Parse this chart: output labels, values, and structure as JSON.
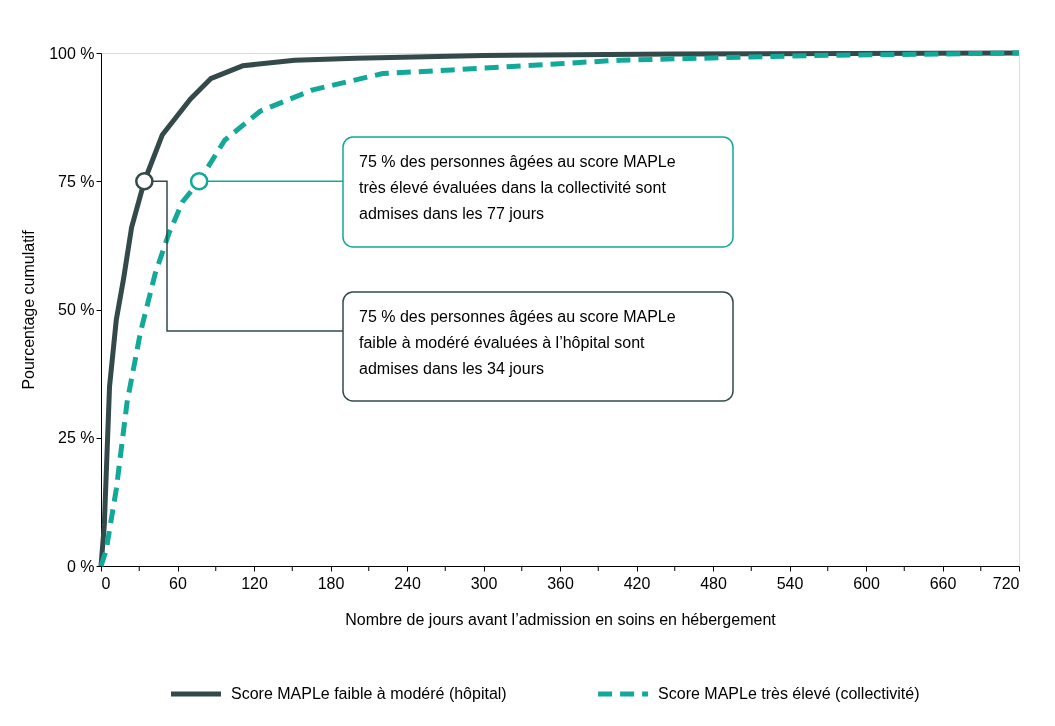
{
  "chart_data": {
    "type": "line",
    "xlabel": "Nombre de jours avant l’admission en soins en hébergement",
    "ylabel": "Pourcentage cumulatif",
    "xlim": [
      0,
      720
    ],
    "ylim": [
      0,
      100
    ],
    "xticks": [
      0,
      {
        "value": 30,
        "label": null
      },
      60,
      {
        "value": 90,
        "label": null
      },
      120,
      {
        "value": 150,
        "label": null
      },
      180,
      {
        "value": 210,
        "label": null
      },
      240,
      {
        "value": 270,
        "label": null
      },
      300,
      {
        "value": 330,
        "label": null
      },
      360,
      {
        "value": 390,
        "label": null
      },
      420,
      {
        "value": 450,
        "label": null
      },
      480,
      {
        "value": 510,
        "label": null
      },
      540,
      {
        "value": 570,
        "label": null
      },
      600,
      {
        "value": 630,
        "label": null
      },
      660,
      {
        "value": 690,
        "label": null
      },
      720
    ],
    "yticks": [
      {
        "value": 0,
        "label": "0 %"
      },
      {
        "value": 25,
        "label": "25 %"
      },
      {
        "value": 50,
        "label": "50 %"
      },
      {
        "value": 75,
        "label": "75 %"
      },
      {
        "value": 100,
        "label": "100 %"
      }
    ],
    "grid": false,
    "legend": "bottom",
    "marker": "none",
    "series": [
      {
        "name": "Score MAPLe faible à modéré (hôpital)",
        "color": "#33494a",
        "line_style": "solid",
        "x": [
          0,
          2.6,
          6.7,
          12,
          17.7,
          24,
          34,
          48,
          70,
          86,
          111,
          152,
          200,
          300,
          450,
          720
        ],
        "values": [
          0,
          8,
          35,
          48,
          56,
          66,
          75,
          84,
          91,
          95,
          97.5,
          98.6,
          99,
          99.5,
          99.8,
          100
        ]
      },
      {
        "name": "Score MAPLe très élevé (collectivité)",
        "color": "#12a89a",
        "line_style": "dashed",
        "x": [
          0,
          4,
          12,
          20.5,
          31,
          42.5,
          53.5,
          64,
          77,
          97,
          125,
          166,
          221,
          275,
          407,
          557,
          720
        ],
        "values": [
          0,
          3,
          15,
          32,
          45.6,
          57,
          65,
          71,
          75,
          83,
          88.7,
          92.8,
          96,
          96.7,
          98.6,
          99.5,
          100
        ]
      }
    ],
    "annotations": [
      {
        "text": "75 % des personnes âgées au score MAPLe\nfaible à modéré évaluées à l’hôpital sont\nadmises dans les 34 jours",
        "x": 34,
        "y": 75
      },
      {
        "text": "75 % des personnes âgées au score MAPLe\ntrès élevé évaluées dans la collectivité sont\nadmises dans les 77 jours",
        "x": 77,
        "y": 75
      }
    ]
  }
}
